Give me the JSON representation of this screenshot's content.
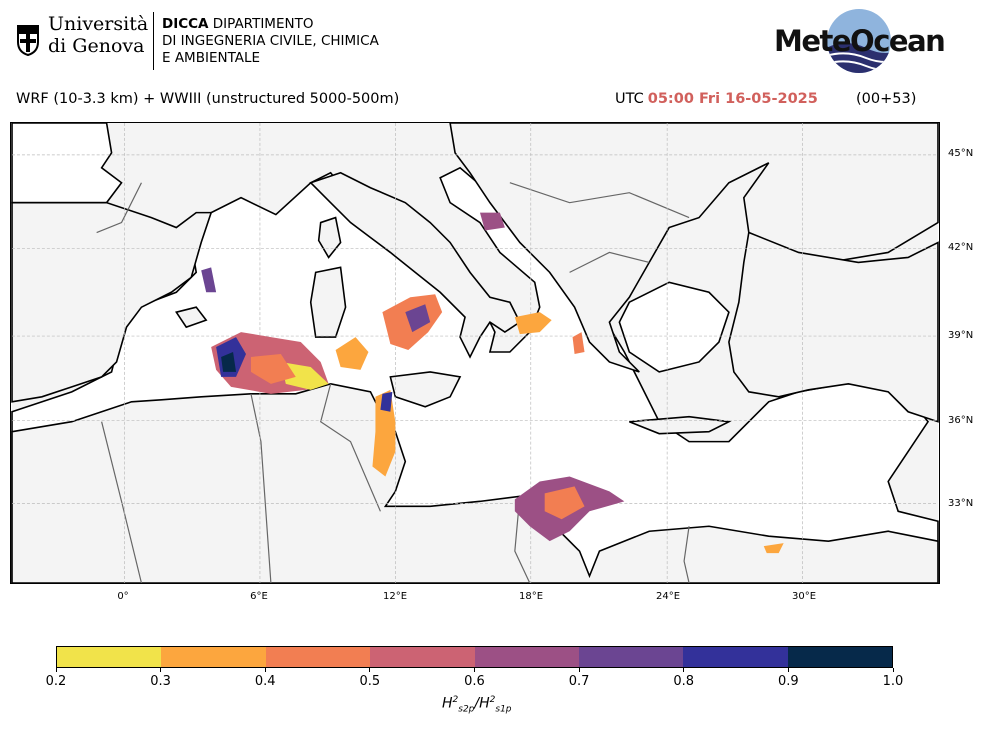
{
  "header": {
    "university_line1": "Università",
    "university_line2": "di Genova",
    "dept_bold": "DICCA",
    "dept_line1_rest": " DIPARTIMENTO",
    "dept_line2": "DI INGEGNERIA CIVILE, CHIMICA",
    "dept_line3": "E AMBIENTALE",
    "brand": "MeteOcean"
  },
  "title": {
    "model": "WRF (10-3.3 km) + WWIII (unstructured 5000-500m)",
    "utc_label": "UTC",
    "time": "05:00 Fri 16-05-2025",
    "lead": "(00+53)"
  },
  "map": {
    "lat_labels": [
      "45°N",
      "42°N",
      "39°N",
      "36°N",
      "33°N"
    ],
    "lon_labels": [
      "0°",
      "6°E",
      "12°E",
      "18°E",
      "24°E",
      "30°E"
    ],
    "colors": {
      "land": "#f4f4f4",
      "sea": "#ffffff",
      "coast": "#000000",
      "border": "#666666",
      "grid": "#bbbbbb"
    }
  },
  "colorbar": {
    "ticks": [
      "0.2",
      "0.3",
      "0.4",
      "0.5",
      "0.6",
      "0.7",
      "0.8",
      "0.9",
      "1.0"
    ],
    "colors": [
      "#f1e34a",
      "#fca63e",
      "#f27e52",
      "#cc6373",
      "#9c5085",
      "#6b4592",
      "#33319a",
      "#06294a"
    ],
    "label_base": "H",
    "label_sup": "2",
    "label_sub1": "s2p",
    "label_sub2": "s1p"
  }
}
